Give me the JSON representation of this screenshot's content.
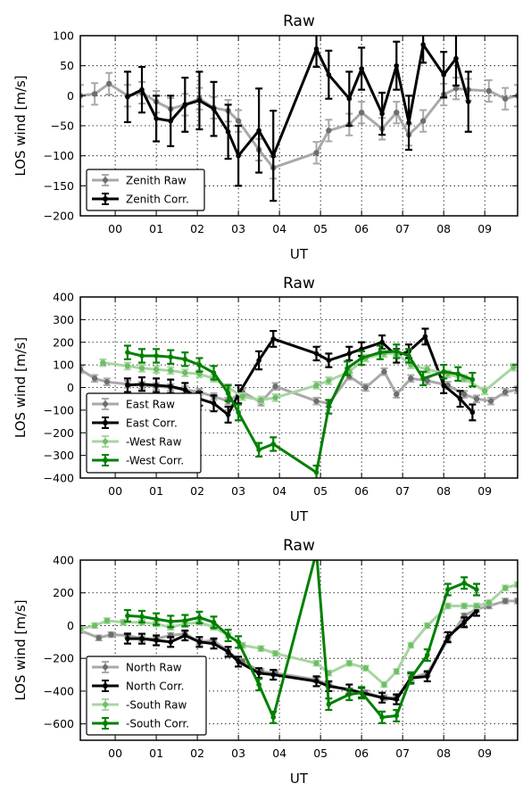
{
  "colors": {
    "zenith_raw": "#a9a9a9",
    "zenith_raw_marker": "#6e6e6e",
    "corr": "#000000",
    "west_raw": "#a8d5a2",
    "west_raw_marker": "#6dbf64",
    "west_corr": "#008000"
  },
  "chart_data": [
    {
      "type": "line",
      "title": "Raw",
      "xlabel": "UT",
      "ylabel": "LOS wind [m/s]",
      "xlim": [
        -0.85,
        9.8
      ],
      "ylim": [
        -200,
        100
      ],
      "xticks": [
        0,
        1,
        2,
        3,
        4,
        5,
        6,
        7,
        8,
        9
      ],
      "xtick_labels": [
        "00",
        "01",
        "02",
        "03",
        "04",
        "05",
        "06",
        "07",
        "08",
        "09"
      ],
      "yticks": [
        -200,
        -150,
        -100,
        -50,
        0,
        50,
        100
      ],
      "ytick_labels": [
        "−200",
        "−150",
        "−100",
        "−50",
        "0",
        "50",
        "100"
      ],
      "grid": true,
      "legend_position": "bottom-left",
      "series": [
        {
          "name": "Zenith Raw",
          "style": "raw",
          "color_key": "zenith_raw",
          "x": [
            -0.85,
            -0.5,
            -0.15,
            0.3,
            0.65,
            1.0,
            1.35,
            1.7,
            2.05,
            2.4,
            2.75,
            3.0,
            3.5,
            3.85,
            4.9,
            5.2,
            5.7,
            6.0,
            6.5,
            6.85,
            7.15,
            7.5,
            8.0,
            8.3,
            8.6,
            9.1,
            9.5,
            9.8
          ],
          "y": [
            0,
            3,
            20,
            0,
            5,
            -10,
            -22,
            -15,
            -5,
            -20,
            -25,
            -42,
            -90,
            -120,
            -95,
            -58,
            -48,
            -28,
            -55,
            -28,
            -65,
            -42,
            2,
            12,
            10,
            8,
            -5,
            0
          ],
          "yerr": [
            18,
            18,
            18,
            18,
            18,
            18,
            18,
            18,
            18,
            18,
            18,
            18,
            18,
            18,
            18,
            18,
            18,
            18,
            18,
            18,
            18,
            18,
            18,
            18,
            18,
            18,
            18,
            18
          ]
        },
        {
          "name": "Zenith Corr.",
          "style": "corr",
          "color_key": "corr",
          "x": [
            0.3,
            0.65,
            1.0,
            1.35,
            1.7,
            2.05,
            2.4,
            2.75,
            3.0,
            3.5,
            3.85,
            4.9,
            5.2,
            5.7,
            6.0,
            6.5,
            6.85,
            7.15,
            7.5,
            8.0,
            8.3,
            8.6
          ],
          "y": [
            -2,
            10,
            -38,
            -42,
            -15,
            -8,
            -22,
            -60,
            -100,
            -58,
            -100,
            78,
            35,
            -5,
            45,
            -30,
            50,
            -45,
            85,
            35,
            62,
            -10
          ],
          "yerr": [
            42,
            38,
            38,
            42,
            45,
            48,
            45,
            45,
            50,
            70,
            75,
            30,
            40,
            45,
            35,
            35,
            40,
            45,
            30,
            38,
            45,
            50
          ]
        }
      ]
    },
    {
      "type": "line",
      "title": "Raw",
      "xlabel": "UT",
      "ylabel": "LOS wind [m/s]",
      "xlim": [
        -0.85,
        9.8
      ],
      "ylim": [
        -400,
        400
      ],
      "xticks": [
        0,
        1,
        2,
        3,
        4,
        5,
        6,
        7,
        8,
        9
      ],
      "xtick_labels": [
        "00",
        "01",
        "02",
        "03",
        "04",
        "05",
        "06",
        "07",
        "08",
        "09"
      ],
      "yticks": [
        -400,
        -300,
        -200,
        -100,
        0,
        100,
        200,
        300,
        400
      ],
      "ytick_labels": [
        "−400",
        "−300",
        "−200",
        "−100",
        "0",
        "100",
        "200",
        "300",
        "400"
      ],
      "grid": true,
      "legend_position": "bottom-left",
      "series": [
        {
          "name": "East Raw",
          "style": "raw",
          "color_key": "zenith_raw",
          "x": [
            -0.85,
            -0.5,
            -0.2,
            0.3,
            0.65,
            1.0,
            1.35,
            1.7,
            2.05,
            2.4,
            2.75,
            3.1,
            3.55,
            3.9,
            4.9,
            5.2,
            5.7,
            6.1,
            6.55,
            6.85,
            7.2,
            7.6,
            8.1,
            8.5,
            8.8,
            9.15,
            9.5,
            9.8
          ],
          "y": [
            80,
            40,
            25,
            15,
            10,
            5,
            0,
            -10,
            -20,
            -40,
            -60,
            -20,
            -65,
            5,
            -60,
            -70,
            50,
            0,
            70,
            -30,
            40,
            30,
            10,
            -30,
            -50,
            -60,
            -20,
            -10
          ],
          "yerr": [
            15,
            15,
            15,
            15,
            15,
            15,
            15,
            15,
            15,
            15,
            15,
            15,
            15,
            15,
            15,
            15,
            15,
            15,
            15,
            15,
            15,
            15,
            15,
            15,
            15,
            15,
            15,
            15
          ]
        },
        {
          "name": "East Corr.",
          "style": "corr",
          "color_key": "corr",
          "x": [
            0.3,
            0.65,
            1.0,
            1.35,
            1.7,
            2.05,
            2.4,
            2.75,
            3.0,
            3.5,
            3.85,
            4.9,
            5.2,
            5.7,
            6.0,
            6.5,
            6.85,
            7.15,
            7.55,
            8.0,
            8.4,
            8.7
          ],
          "y": [
            10,
            15,
            10,
            5,
            -10,
            -50,
            -70,
            -120,
            -30,
            120,
            215,
            150,
            120,
            150,
            170,
            200,
            140,
            160,
            225,
            10,
            -50,
            -110
          ],
          "yerr": [
            30,
            30,
            30,
            30,
            30,
            30,
            35,
            35,
            40,
            40,
            35,
            30,
            30,
            30,
            30,
            30,
            30,
            30,
            35,
            35,
            35,
            35
          ]
        },
        {
          "name": "-West Raw",
          "style": "raw",
          "color_key": "west_raw",
          "x": [
            -0.3,
            0.3,
            0.65,
            1.0,
            1.35,
            1.7,
            2.05,
            2.4,
            2.75,
            3.1,
            3.55,
            3.9,
            4.9,
            5.2,
            5.7,
            6.1,
            6.55,
            6.85,
            7.2,
            7.6,
            8.1,
            8.5,
            9.0,
            9.7
          ],
          "y": [
            110,
            95,
            85,
            80,
            75,
            65,
            60,
            40,
            0,
            -40,
            -55,
            -45,
            10,
            30,
            70,
            130,
            150,
            150,
            100,
            80,
            60,
            40,
            -15,
            90
          ],
          "yerr": [
            15,
            15,
            15,
            15,
            15,
            15,
            15,
            15,
            15,
            15,
            15,
            15,
            15,
            15,
            15,
            15,
            15,
            15,
            15,
            15,
            15,
            15,
            15,
            15
          ]
        },
        {
          "name": "-West Corr.",
          "style": "corr",
          "color_key": "west_corr",
          "x": [
            0.3,
            0.65,
            1.0,
            1.35,
            1.7,
            2.05,
            2.4,
            2.75,
            3.0,
            3.5,
            3.85,
            4.9,
            5.2,
            5.65,
            6.0,
            6.45,
            6.85,
            7.15,
            7.5,
            8.0,
            8.35,
            8.7
          ],
          "y": [
            155,
            140,
            140,
            135,
            125,
            100,
            65,
            -25,
            -110,
            -275,
            -250,
            -375,
            -85,
            85,
            130,
            155,
            160,
            140,
            40,
            70,
            60,
            35
          ],
          "yerr": [
            30,
            30,
            30,
            30,
            30,
            30,
            30,
            35,
            35,
            30,
            30,
            30,
            30,
            30,
            30,
            30,
            30,
            30,
            30,
            30,
            30,
            30
          ]
        }
      ]
    },
    {
      "type": "line",
      "title": "Raw",
      "xlabel": "UT",
      "ylabel": "LOS wind [m/s]",
      "xlim": [
        -0.85,
        9.8
      ],
      "ylim": [
        -700,
        400
      ],
      "xticks": [
        0,
        1,
        2,
        3,
        4,
        5,
        6,
        7,
        8,
        9
      ],
      "xtick_labels": [
        "00",
        "01",
        "02",
        "03",
        "04",
        "05",
        "06",
        "07",
        "08",
        "09"
      ],
      "yticks": [
        -600,
        -400,
        -200,
        0,
        200,
        400
      ],
      "ytick_labels": [
        "−600",
        "−400",
        "−200",
        "0",
        "200",
        "400"
      ],
      "grid": true,
      "legend_position": "bottom-left",
      "series": [
        {
          "name": "North Raw",
          "style": "raw",
          "color_key": "zenith_raw",
          "x": [
            -0.85,
            -0.4,
            -0.1,
            0.3,
            0.65,
            1.0,
            1.35,
            1.7,
            2.05,
            2.4,
            2.75,
            3.1,
            3.55,
            3.9,
            4.9,
            5.2,
            5.7,
            6.1,
            6.55,
            6.85,
            7.2,
            7.6,
            8.1,
            8.5,
            8.8,
            9.1,
            9.5,
            9.8
          ],
          "y": [
            -30,
            -75,
            -55,
            -60,
            -80,
            -80,
            -60,
            -50,
            -100,
            -90,
            -160,
            -220,
            -280,
            -290,
            -330,
            -360,
            -400,
            -410,
            -440,
            -440,
            -320,
            -290,
            -90,
            60,
            100,
            120,
            150,
            150
          ],
          "yerr": [
            15,
            15,
            15,
            15,
            15,
            15,
            15,
            15,
            15,
            15,
            15,
            15,
            15,
            15,
            15,
            15,
            15,
            15,
            15,
            15,
            15,
            15,
            15,
            15,
            15,
            15,
            15,
            15
          ]
        },
        {
          "name": "North Corr.",
          "style": "corr",
          "color_key": "corr",
          "x": [
            0.3,
            0.65,
            1.0,
            1.35,
            1.7,
            2.05,
            2.4,
            2.75,
            3.0,
            3.5,
            3.85,
            4.9,
            5.2,
            5.7,
            6.0,
            6.5,
            6.85,
            7.2,
            7.6,
            8.1,
            8.5,
            8.8
          ],
          "y": [
            -80,
            -80,
            -90,
            -100,
            -60,
            -100,
            -110,
            -160,
            -220,
            -290,
            -300,
            -340,
            -370,
            -390,
            -410,
            -440,
            -450,
            -320,
            -310,
            -70,
            20,
            90
          ],
          "yerr": [
            30,
            30,
            30,
            30,
            30,
            30,
            30,
            30,
            30,
            30,
            30,
            30,
            30,
            30,
            30,
            30,
            30,
            30,
            30,
            30,
            30,
            30
          ]
        },
        {
          "name": "-South Raw",
          "style": "raw",
          "color_key": "west_raw",
          "x": [
            -0.85,
            -0.5,
            -0.2,
            0.2,
            0.65,
            1.0,
            1.35,
            1.7,
            2.05,
            2.4,
            2.75,
            3.1,
            3.55,
            3.9,
            4.9,
            5.2,
            5.7,
            6.1,
            6.55,
            6.85,
            7.2,
            7.6,
            8.1,
            8.5,
            8.8,
            9.1,
            9.5,
            9.8
          ],
          "y": [
            -20,
            0,
            30,
            20,
            20,
            10,
            -10,
            10,
            20,
            -10,
            -60,
            -120,
            -140,
            -170,
            -230,
            -290,
            -230,
            -260,
            -360,
            -280,
            -120,
            0,
            120,
            120,
            120,
            140,
            230,
            250
          ],
          "yerr": [
            15,
            15,
            15,
            15,
            15,
            15,
            15,
            15,
            15,
            15,
            15,
            15,
            15,
            15,
            15,
            15,
            15,
            15,
            15,
            15,
            15,
            15,
            15,
            15,
            15,
            15,
            15,
            15
          ]
        },
        {
          "name": "-South Corr.",
          "style": "corr",
          "color_key": "west_corr",
          "x": [
            0.3,
            0.65,
            1.0,
            1.35,
            1.7,
            2.05,
            2.4,
            2.75,
            3.0,
            3.5,
            3.85,
            4.9,
            5.2,
            5.7,
            6.0,
            6.5,
            6.85,
            7.2,
            7.6,
            8.1,
            8.5,
            8.8
          ],
          "y": [
            60,
            55,
            40,
            25,
            30,
            50,
            20,
            -60,
            -100,
            -360,
            -560,
            450,
            -480,
            -420,
            -410,
            -560,
            -550,
            -320,
            -180,
            220,
            260,
            220
          ],
          "yerr": [
            35,
            35,
            35,
            35,
            35,
            35,
            35,
            35,
            35,
            35,
            35,
            35,
            35,
            35,
            35,
            35,
            35,
            35,
            35,
            35,
            35,
            35
          ]
        }
      ]
    }
  ]
}
